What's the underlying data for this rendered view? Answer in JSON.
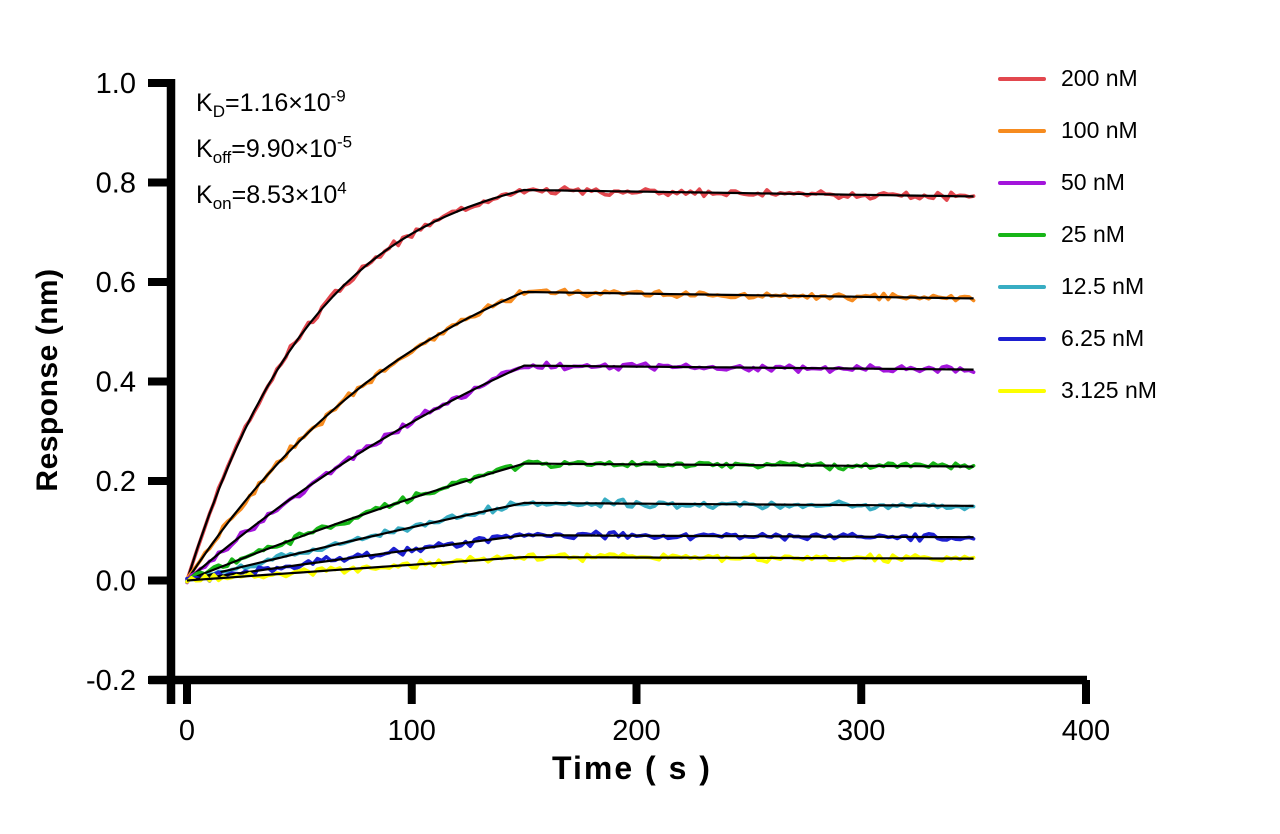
{
  "figure": {
    "background": "#FFFFFF"
  },
  "annotation": {
    "lines": [
      {
        "base": "K",
        "sub": "D",
        "body": "=1.16×10",
        "exp": "-9"
      },
      {
        "base": "K",
        "sub": "off",
        "body": "=9.90×10",
        "exp": "-5"
      },
      {
        "base": "K",
        "sub": "on",
        "body": "=8.53×10",
        "exp": "4"
      }
    ]
  },
  "chart_data": {
    "type": "line",
    "title": "",
    "xlabel": "Time ( s )",
    "ylabel": "Response (nm)",
    "xlim": [
      0,
      400
    ],
    "ylim": [
      -0.2,
      1.0
    ],
    "x_ticks": [
      "0",
      "100",
      "200",
      "300",
      "400"
    ],
    "x_tick_values": [
      0,
      100,
      200,
      300,
      400
    ],
    "y_ticks": [
      "1.0",
      "0.8",
      "0.6",
      "0.4",
      "0.2",
      "0.0",
      "-0.2"
    ],
    "y_tick_values": [
      1.0,
      0.8,
      0.6,
      0.4,
      0.2,
      0.0,
      -0.2
    ],
    "grid": false,
    "legend_position": "right",
    "axis_color": "#000000",
    "fit_line_color": "#000000",
    "association_start_s": 0,
    "association_end_s": 150,
    "dissociation_end_s": 350,
    "baseline_response": 0.0,
    "series": [
      {
        "label": "200 nM",
        "color": "#E2474E",
        "response_peak": 0.785,
        "response_end": 0.772,
        "k_obs": 0.01716
      },
      {
        "label": "100 nM",
        "color": "#F68B1F",
        "response_peak": 0.58,
        "response_end": 0.567,
        "k_obs": 0.00863
      },
      {
        "label": "50 nM",
        "color": "#A315DB",
        "response_peak": 0.432,
        "response_end": 0.424,
        "k_obs": 0.004365
      },
      {
        "label": "25 nM",
        "color": "#17B517",
        "response_peak": 0.235,
        "response_end": 0.229,
        "k_obs": 0.002233
      },
      {
        "label": "12.5 nM",
        "color": "#38ADC3",
        "response_peak": 0.156,
        "response_end": 0.15,
        "k_obs": 0.001166
      },
      {
        "label": "6.25 nM",
        "color": "#1D1FD0",
        "response_peak": 0.091,
        "response_end": 0.087,
        "k_obs": 0.000633
      },
      {
        "label": "3.125 nM",
        "color": "#FCFF00",
        "response_peak": 0.047,
        "response_end": 0.044,
        "k_obs": 0.000367
      }
    ]
  }
}
